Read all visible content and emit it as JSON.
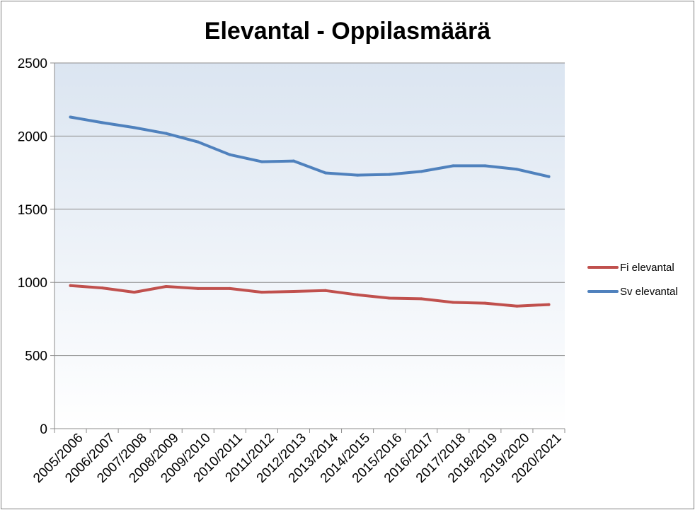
{
  "chart_data": {
    "type": "line",
    "title": "Elevantal - Oppilasmäärä",
    "xlabel": "",
    "ylabel": "",
    "categories": [
      "2005/2006",
      "2006/2007",
      "2007/2008",
      "2008/2009",
      "2009/2010",
      "2010/2011",
      "2011/2012",
      "2012/2013",
      "2013/2014",
      "2014/2015",
      "2015/2016",
      "2016/2017",
      "2017/2018",
      "2018/2019",
      "2019/2020",
      "2020/2021"
    ],
    "ylim": [
      0,
      2500
    ],
    "yticks": [
      0,
      500,
      1000,
      1500,
      2000,
      2500
    ],
    "grid": true,
    "legend_position": "right",
    "series": [
      {
        "name": "Fi elevantal",
        "color": "#c0504d",
        "values": [
          978,
          962,
          933,
          972,
          958,
          958,
          933,
          938,
          944,
          915,
          892,
          888,
          863,
          858,
          838,
          848
        ]
      },
      {
        "name": "Sv elevantal",
        "color": "#4f81bd",
        "values": [
          2130,
          2092,
          2058,
          2018,
          1960,
          1873,
          1825,
          1830,
          1748,
          1733,
          1738,
          1758,
          1797,
          1797,
          1773,
          1723
        ]
      }
    ]
  }
}
